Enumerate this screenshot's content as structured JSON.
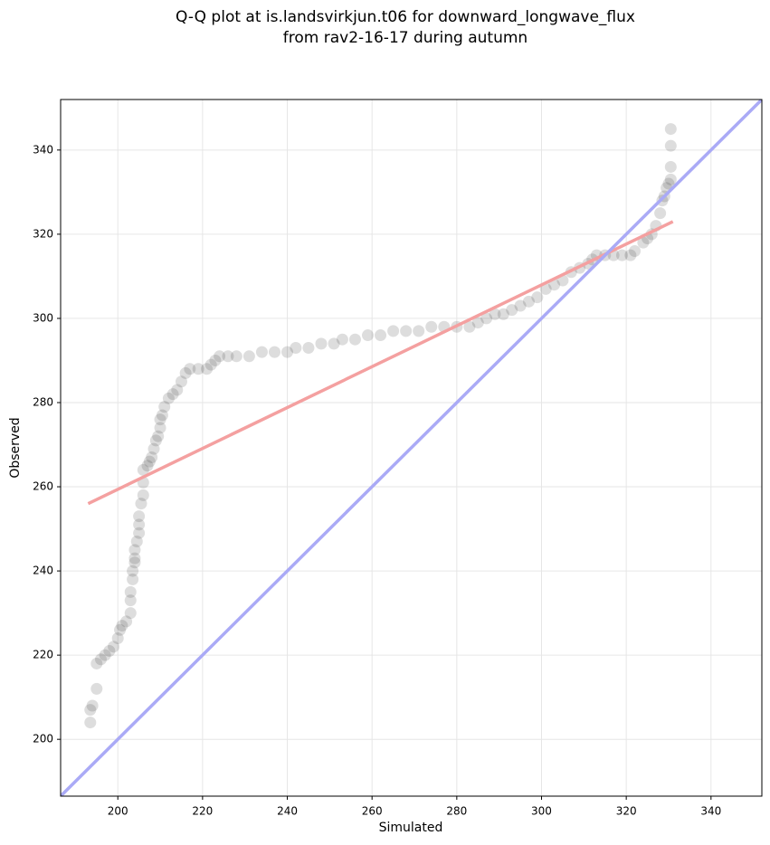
{
  "chart_data": {
    "type": "scatter",
    "title": [
      "Q-Q plot at is.landsvirkjun.t06 for downward_longwave_flux",
      "from rav2-16-17 during autumn"
    ],
    "x_label": "Simulated",
    "y_label": "Observed",
    "xlim": [
      186.5,
      352
    ],
    "ylim": [
      186.5,
      352
    ],
    "xticks": [
      200,
      220,
      240,
      260,
      280,
      300,
      320,
      340
    ],
    "yticks": [
      200,
      220,
      240,
      260,
      280,
      300,
      320,
      340
    ],
    "grid": true,
    "color": "#333333",
    "x": [
      193.5,
      193.5,
      194,
      195,
      195,
      196,
      197,
      198,
      199,
      200,
      200.5,
      201,
      202,
      203,
      203,
      203,
      203.5,
      203.5,
      204,
      204,
      204,
      204.5,
      205,
      205,
      205,
      205.5,
      206,
      206,
      206,
      207,
      207.5,
      208,
      208.5,
      209,
      209.5,
      210,
      210,
      210.5,
      211,
      212,
      213,
      214,
      215,
      216,
      217,
      219,
      221,
      222,
      223,
      224,
      226,
      228,
      231,
      234,
      237,
      240,
      242,
      245,
      248,
      251,
      253,
      256,
      259,
      262,
      265,
      268,
      271,
      274,
      277,
      280,
      283,
      285,
      287,
      289,
      291,
      293,
      295,
      297,
      299,
      301,
      303,
      305,
      307,
      309,
      311,
      312,
      313,
      315,
      317,
      319,
      321,
      322,
      324,
      325,
      326,
      327,
      328,
      328.5,
      329,
      329.5,
      330,
      330.5,
      330.5,
      330.5,
      330.5
    ],
    "values": [
      204,
      207,
      208,
      212,
      218,
      219,
      220,
      221,
      222,
      224,
      226,
      227,
      228,
      230,
      233,
      235,
      238,
      240,
      242,
      243,
      245,
      247,
      249,
      251,
      253,
      256,
      258,
      261,
      264,
      265,
      266,
      267,
      269,
      271,
      272,
      274,
      276,
      277,
      279,
      281,
      282,
      283,
      285,
      287,
      288,
      288,
      288,
      289,
      290,
      291,
      291,
      291,
      291,
      292,
      292,
      292,
      293,
      293,
      294,
      294,
      295,
      295,
      296,
      296,
      297,
      297,
      297,
      298,
      298,
      298,
      298,
      299,
      300,
      301,
      301,
      302,
      303,
      304,
      305,
      307,
      308,
      309,
      311,
      312,
      313,
      314,
      315,
      315,
      315,
      315,
      315,
      316,
      318,
      319,
      320,
      322,
      325,
      328,
      329,
      331,
      332,
      333,
      336,
      341,
      345
    ],
    "lines": [
      {
        "x": [
          193,
          331
        ],
        "values": [
          256,
          323
        ],
        "color": "#f4a0a0"
      },
      {
        "x": [
          186.5,
          352
        ],
        "values": [
          186.5,
          352
        ],
        "color": "#aaaaf6"
      }
    ]
  }
}
